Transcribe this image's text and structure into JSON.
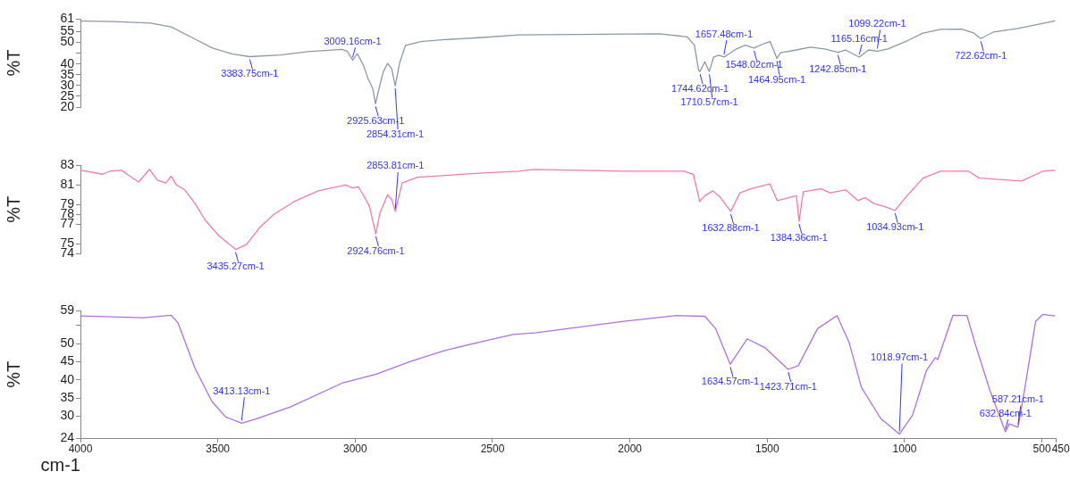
{
  "chart_data": [
    {
      "type": "line",
      "ylabel": "%T",
      "color": "#8c9aa8",
      "tick_labels": "y",
      "xlim": [
        4000,
        450
      ],
      "ylim": [
        20,
        61
      ],
      "yticks": [
        20,
        25,
        30,
        35,
        40,
        {
          "value": 45,
          "label": null
        },
        50,
        55,
        61
      ],
      "x": [
        3998,
        3882,
        3745,
        3670,
        3596,
        3521,
        3446,
        3384,
        3272,
        3172,
        3048,
        3029,
        3009,
        2992,
        2970,
        2954,
        2936,
        2926,
        2913,
        2898,
        2882,
        2867,
        2854,
        2838,
        2817,
        2761,
        2686,
        2549,
        2405,
        1893,
        1791,
        1765,
        1750,
        1745,
        1727,
        1711,
        1695,
        1676,
        1657,
        1612,
        1580,
        1548,
        1509,
        1490,
        1477,
        1465,
        1452,
        1394,
        1343,
        1291,
        1243,
        1215,
        1165,
        1131,
        1099,
        1061,
        997,
        933,
        869,
        792,
        747,
        723,
        677,
        587,
        452
      ],
      "values": [
        59.9,
        59.7,
        59.0,
        57.2,
        52.4,
        47.5,
        44.6,
        43.4,
        44.2,
        45.7,
        46.8,
        45.9,
        41.8,
        44.8,
        39.4,
        33.5,
        28.6,
        21.5,
        28.6,
        36.2,
        40.3,
        37.8,
        29.9,
        40.5,
        48.6,
        50.4,
        51.2,
        52.2,
        53.5,
        54.0,
        52.6,
        48.7,
        37.1,
        36.5,
        41.0,
        36.5,
        43.2,
        44.1,
        43.2,
        47.0,
        48.7,
        47.4,
        49.6,
        50.4,
        46.5,
        42.6,
        45.2,
        46.5,
        47.8,
        47.0,
        45.4,
        46.5,
        43.2,
        46.5,
        45.9,
        47.0,
        50.4,
        54.3,
        56.1,
        56.2,
        54.3,
        51.8,
        54.8,
        56.5,
        60.0
      ],
      "annotations": [
        {
          "text": "3383.75cm-1",
          "x": 3383.75,
          "y": 43.4
        },
        {
          "text": "3009.16cm-1",
          "x": 3009.16,
          "y": 41.8
        },
        {
          "text": "2925.63cm-1",
          "x": 2925.63,
          "y": 21.5
        },
        {
          "text": "2854.31cm-1",
          "x": 2854.31,
          "y": 29.9
        },
        {
          "text": "1744.62cm-1",
          "x": 1744.62,
          "y": 36.5
        },
        {
          "text": "1710.57cm-1",
          "x": 1710.57,
          "y": 36.5
        },
        {
          "text": "1657.48cm-1",
          "x": 1657.48,
          "y": 43.2
        },
        {
          "text": "1548.02cm-1",
          "x": 1548.02,
          "y": 47.4
        },
        {
          "text": "1464.95cm-1",
          "x": 1464.95,
          "y": 42.6
        },
        {
          "text": "1242.85cm-1",
          "x": 1242.85,
          "y": 45.4
        },
        {
          "text": "1165.16cm-1",
          "x": 1165.16,
          "y": 43.2
        },
        {
          "text": "1099.22cm-1",
          "x": 1099.22,
          "y": 45.9
        },
        {
          "text": "722.62cm-1",
          "x": 722.62,
          "y": 51.8
        }
      ]
    },
    {
      "type": "line",
      "ylabel": "%T",
      "color": "#f27ab0",
      "tick_labels": "y",
      "xlim": [
        4000,
        450
      ],
      "ylim": [
        74,
        83
      ],
      "yticks": [
        74,
        75,
        77,
        78,
        79,
        81,
        83
      ],
      "x": [
        3998,
        3919,
        3894,
        3851,
        3820,
        3788,
        3749,
        3720,
        3689,
        3670,
        3651,
        3620,
        3583,
        3546,
        3496,
        3435,
        3396,
        3346,
        3296,
        3222,
        3134,
        3035,
        3010,
        2988,
        2967,
        2948,
        2925,
        2910,
        2882,
        2867,
        2854,
        2829,
        2773,
        2549,
        2405,
        2348,
        2022,
        1804,
        1769,
        1746,
        1727,
        1698,
        1670,
        1633,
        1599,
        1560,
        1490,
        1464,
        1394,
        1384,
        1369,
        1304,
        1272,
        1215,
        1170,
        1144,
        1112,
        1074,
        1035,
        997,
        933,
        869,
        767,
        728,
        574,
        497,
        452
      ],
      "values": [
        82.5,
        82.1,
        82.4,
        82.5,
        81.9,
        81.3,
        82.6,
        81.5,
        81.2,
        81.9,
        81.0,
        80.5,
        79.1,
        77.4,
        75.8,
        74.4,
        74.9,
        76.7,
        78.0,
        79.3,
        80.4,
        81.0,
        80.7,
        80.8,
        79.8,
        78.8,
        76.0,
        78.1,
        80.0,
        79.5,
        78.3,
        81.2,
        81.8,
        82.2,
        82.4,
        82.6,
        82.4,
        82.4,
        82.1,
        79.3,
        79.9,
        80.4,
        79.7,
        78.3,
        80.2,
        80.6,
        81.1,
        79.4,
        79.9,
        77.3,
        80.3,
        80.6,
        80.2,
        80.5,
        79.4,
        79.7,
        79.1,
        78.8,
        78.4,
        79.7,
        81.7,
        82.4,
        82.4,
        81.7,
        81.4,
        82.4,
        82.5
      ],
      "annotations": [
        {
          "text": "3435.27cm-1",
          "x": 3435.27,
          "y": 74.4
        },
        {
          "text": "2924.76cm-1",
          "x": 2924.76,
          "y": 76.0
        },
        {
          "text": "2853.81cm-1",
          "x": 2853.81,
          "y": 78.3
        },
        {
          "text": "1632.88cm-1",
          "x": 1632.88,
          "y": 78.3
        },
        {
          "text": "1384.36cm-1",
          "x": 1384.36,
          "y": 77.3
        },
        {
          "text": "1034.93cm-1",
          "x": 1034.93,
          "y": 78.4
        }
      ]
    },
    {
      "type": "line",
      "ylabel": "%T",
      "xlabel": "cm-1",
      "color": "#b070e0",
      "xlim": [
        4000,
        450
      ],
      "xticks": [
        4000,
        3500,
        3000,
        2500,
        2000,
        1500,
        1000,
        500,
        450
      ],
      "ylim": [
        24,
        59
      ],
      "yticks": [
        24,
        30,
        35,
        40,
        45,
        50,
        {
          "value": 55,
          "label": null
        },
        59
      ],
      "x": [
        3998,
        3770,
        3670,
        3645,
        3583,
        3521,
        3471,
        3413,
        3359,
        3234,
        3048,
        2923,
        2799,
        2674,
        2525,
        2425,
        2340,
        2022,
        1829,
        1727,
        1688,
        1635,
        1573,
        1509,
        1424,
        1387,
        1317,
        1246,
        1202,
        1157,
        1087,
        1019,
        971,
        920,
        888,
        879,
        824,
        773,
        741,
        689,
        633,
        619,
        587,
        562,
        523,
        497,
        452
      ],
      "values": [
        57.6,
        57.1,
        57.8,
        55.7,
        43.2,
        34.0,
        29.8,
        28.1,
        29.3,
        32.6,
        39.1,
        41.6,
        45.1,
        48.1,
        50.8,
        52.5,
        53.0,
        56.1,
        57.7,
        57.5,
        54.1,
        44.3,
        51.3,
        48.9,
        42.9,
        43.9,
        54.1,
        57.7,
        50.3,
        37.9,
        29.4,
        25.1,
        30.3,
        42.7,
        46.1,
        45.6,
        57.8,
        57.7,
        49.4,
        37.0,
        25.7,
        27.9,
        27.0,
        37.9,
        56.1,
        58.0,
        57.6
      ],
      "annotations": [
        {
          "text": "3413.13cm-1",
          "x": 3413.13,
          "y": 28.1
        },
        {
          "text": "1634.57cm-1",
          "x": 1634.57,
          "y": 44.3
        },
        {
          "text": "1423.71cm-1",
          "x": 1423.71,
          "y": 42.9
        },
        {
          "text": "1018.97cm-1",
          "x": 1018.97,
          "y": 25.1
        },
        {
          "text": "632.84cm-1",
          "x": 632.84,
          "y": 25.7
        },
        {
          "text": "587.21cm-1",
          "x": 587.21,
          "y": 27.0
        }
      ]
    }
  ]
}
